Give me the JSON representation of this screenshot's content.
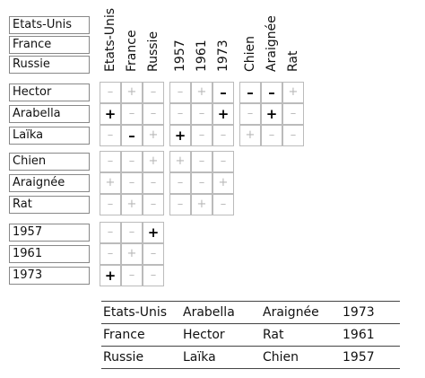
{
  "column_headers": [
    "Etats-Unis",
    "France",
    "Russie",
    "1957",
    "1961",
    "1973",
    "Chien",
    "Araignée",
    "Rat"
  ],
  "row_labels": [
    [
      "Etats-Unis",
      "France",
      "Russie"
    ],
    [
      "Hector",
      "Arabella",
      "Laïka"
    ],
    [
      "Chien",
      "Araignée",
      "Rat"
    ],
    [
      "1957",
      "1961",
      "1973"
    ]
  ],
  "grid_blocks": [
    {
      "row_group": 1,
      "col_group": 0,
      "marks": [
        [
          "–",
          "+",
          "–"
        ],
        [
          "+",
          "–",
          "–"
        ],
        [
          "–",
          "–",
          "+"
        ]
      ]
    },
    {
      "row_group": 1,
      "col_group": 1,
      "marks": [
        [
          "–",
          "+",
          "–"
        ],
        [
          "–",
          "–",
          "+"
        ],
        [
          "+",
          "–",
          "–"
        ]
      ]
    },
    {
      "row_group": 1,
      "col_group": 2,
      "marks": [
        [
          "–",
          "–",
          "+"
        ],
        [
          "–",
          "+",
          "–"
        ],
        [
          "+",
          "–",
          "–"
        ]
      ]
    },
    {
      "row_group": 2,
      "col_group": 0,
      "marks": [
        [
          "–",
          "–",
          "+"
        ],
        [
          "+",
          "–",
          "–"
        ],
        [
          "–",
          "+",
          "–"
        ]
      ]
    },
    {
      "row_group": 2,
      "col_group": 1,
      "marks": [
        [
          "+",
          "–",
          "–"
        ],
        [
          "–",
          "–",
          "+"
        ],
        [
          "–",
          "+",
          "–"
        ]
      ]
    },
    {
      "row_group": 3,
      "col_group": 0,
      "marks": [
        [
          "–",
          "–",
          "+"
        ],
        [
          "–",
          "+",
          "–"
        ],
        [
          "+",
          "–",
          "–"
        ]
      ]
    }
  ],
  "confirmed_cells": [
    [
      1,
      0,
      1,
      0
    ],
    [
      1,
      0,
      2,
      1
    ],
    [
      1,
      1,
      0,
      2
    ],
    [
      1,
      2,
      0,
      0
    ],
    [
      1,
      1,
      1,
      2
    ],
    [
      1,
      1,
      2,
      0
    ],
    [
      1,
      2,
      0,
      1
    ],
    [
      1,
      2,
      1,
      1
    ],
    [
      3,
      0,
      0,
      2
    ],
    [
      3,
      0,
      2,
      0
    ]
  ],
  "solution_table": [
    [
      "Etats-Unis",
      "Arabella",
      "Araignée",
      "1973"
    ],
    [
      "France",
      "Hector",
      "Rat",
      "1961"
    ],
    [
      "Russie",
      "Laïka",
      "Chien",
      "1957"
    ]
  ]
}
